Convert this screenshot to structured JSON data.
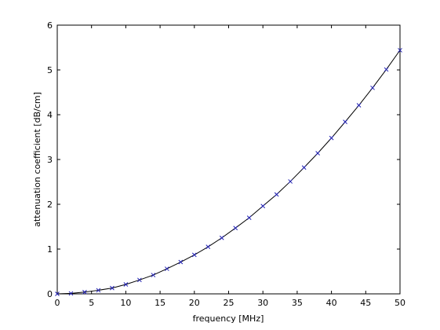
{
  "chart_data": {
    "type": "line",
    "title": "",
    "xlabel": "frequency [MHz]",
    "ylabel": "attenuation coefficient [dB/cm]",
    "xlim": [
      0,
      50
    ],
    "ylim": [
      0,
      6
    ],
    "xticks": [
      0,
      5,
      10,
      15,
      20,
      25,
      30,
      35,
      40,
      45,
      50
    ],
    "yticks": [
      0,
      1,
      2,
      3,
      4,
      5,
      6
    ],
    "grid": false,
    "legend": "none",
    "series": [
      {
        "style": "markers",
        "marker": "x",
        "color": "#1f1fb4",
        "x": [
          0,
          2,
          4,
          6,
          8,
          10,
          12,
          14,
          16,
          18,
          20,
          22,
          24,
          26,
          28,
          30,
          32,
          34,
          36,
          38,
          40,
          42,
          44,
          46,
          48,
          50
        ],
        "y": [
          0.0,
          0.01,
          0.04,
          0.08,
          0.13,
          0.21,
          0.31,
          0.42,
          0.56,
          0.71,
          0.87,
          1.05,
          1.25,
          1.47,
          1.7,
          1.96,
          2.22,
          2.51,
          2.82,
          3.14,
          3.48,
          3.84,
          4.21,
          4.6,
          5.01,
          5.44
        ]
      },
      {
        "style": "line",
        "color": "#000000",
        "x": [
          0,
          2,
          4,
          6,
          8,
          10,
          12,
          14,
          16,
          18,
          20,
          22,
          24,
          26,
          28,
          30,
          32,
          34,
          36,
          38,
          40,
          42,
          44,
          46,
          48,
          50
        ],
        "y": [
          0.0,
          0.01,
          0.04,
          0.08,
          0.13,
          0.21,
          0.31,
          0.42,
          0.56,
          0.71,
          0.87,
          1.05,
          1.25,
          1.47,
          1.7,
          1.96,
          2.22,
          2.51,
          2.82,
          3.14,
          3.48,
          3.84,
          4.21,
          4.6,
          5.01,
          5.44
        ]
      }
    ]
  }
}
